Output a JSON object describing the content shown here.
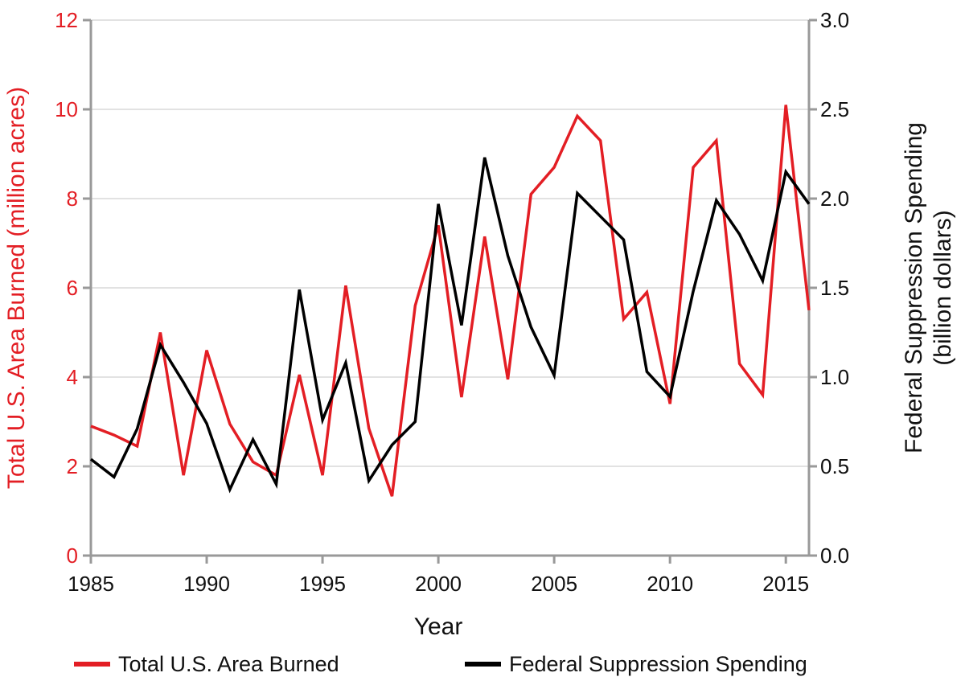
{
  "colors": {
    "area": "#e31e24",
    "spending": "#000000",
    "axis": "#999999",
    "grid": "#d9d9d9"
  },
  "chart_data": {
    "type": "line",
    "title": "",
    "xlabel": "Year",
    "ylabel_left": "Total U.S. Area Burned (million acres)",
    "ylabel_right_line1": "Federal Suppression Spending",
    "ylabel_right_line2": "(billion dollars)",
    "xlim": [
      1985,
      2016
    ],
    "ylim_left": [
      0,
      12
    ],
    "ylim_right": [
      0,
      3.0
    ],
    "x_ticks": [
      "1985",
      "1990",
      "1995",
      "2000",
      "2005",
      "2010",
      "2015"
    ],
    "y_ticks_left": [
      "0",
      "2",
      "4",
      "6",
      "8",
      "10",
      "12"
    ],
    "y_ticks_right": [
      "0.0",
      "0.5",
      "1.0",
      "1.5",
      "2.0",
      "2.5",
      "3.0"
    ],
    "grid": true,
    "legend_position": "bottom",
    "x": [
      1985,
      1986,
      1987,
      1988,
      1989,
      1990,
      1991,
      1992,
      1993,
      1994,
      1995,
      1996,
      1997,
      1998,
      1999,
      2000,
      2001,
      2002,
      2003,
      2004,
      2005,
      2006,
      2007,
      2008,
      2009,
      2010,
      2011,
      2012,
      2013,
      2014,
      2015,
      2016
    ],
    "series": [
      {
        "name": "Total U.S. Area Burned",
        "axis": "left",
        "values": [
          2.9,
          2.7,
          2.45,
          5.0,
          1.8,
          4.6,
          2.95,
          2.1,
          1.8,
          4.05,
          1.8,
          6.05,
          2.85,
          1.33,
          5.6,
          7.4,
          3.55,
          7.15,
          3.95,
          8.1,
          8.7,
          9.85,
          9.3,
          5.3,
          5.9,
          3.4,
          8.7,
          9.3,
          4.3,
          3.6,
          10.1,
          5.5
        ]
      },
      {
        "name": "Federal Suppression Spending",
        "axis": "right",
        "values": [
          0.54,
          0.44,
          0.71,
          1.18,
          0.97,
          0.74,
          0.37,
          0.65,
          0.4,
          1.49,
          0.76,
          1.08,
          0.42,
          0.62,
          0.75,
          1.97,
          1.29,
          2.23,
          1.68,
          1.28,
          1.01,
          2.03,
          1.9,
          1.77,
          1.03,
          0.89,
          1.48,
          1.99,
          1.8,
          1.54,
          2.15,
          1.97
        ]
      }
    ]
  }
}
